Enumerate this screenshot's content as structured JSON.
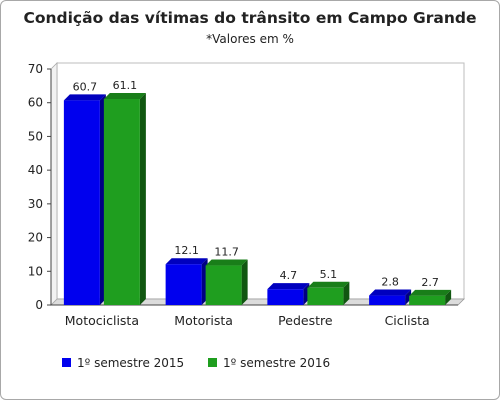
{
  "chart_data": {
    "type": "bar",
    "title": "Condição das vítimas do trânsito em Campo Grande",
    "subtitle": "*Valores em %",
    "categories": [
      "Motociclista",
      "Motorista",
      "Pedestre",
      "Ciclista"
    ],
    "series": [
      {
        "name": "1º semestre 2015",
        "color": "#0000ee",
        "values": [
          60.7,
          12.1,
          4.7,
          2.8
        ]
      },
      {
        "name": "1º semestre 2016",
        "color": "#1f9e1f",
        "values": [
          61.1,
          11.7,
          5.1,
          2.7
        ]
      }
    ],
    "ylim": [
      0,
      70
    ],
    "yticks": [
      0,
      10,
      20,
      30,
      40,
      50,
      60,
      70
    ],
    "legend": "bottom-left",
    "grid": false,
    "style": "3d-bars"
  }
}
